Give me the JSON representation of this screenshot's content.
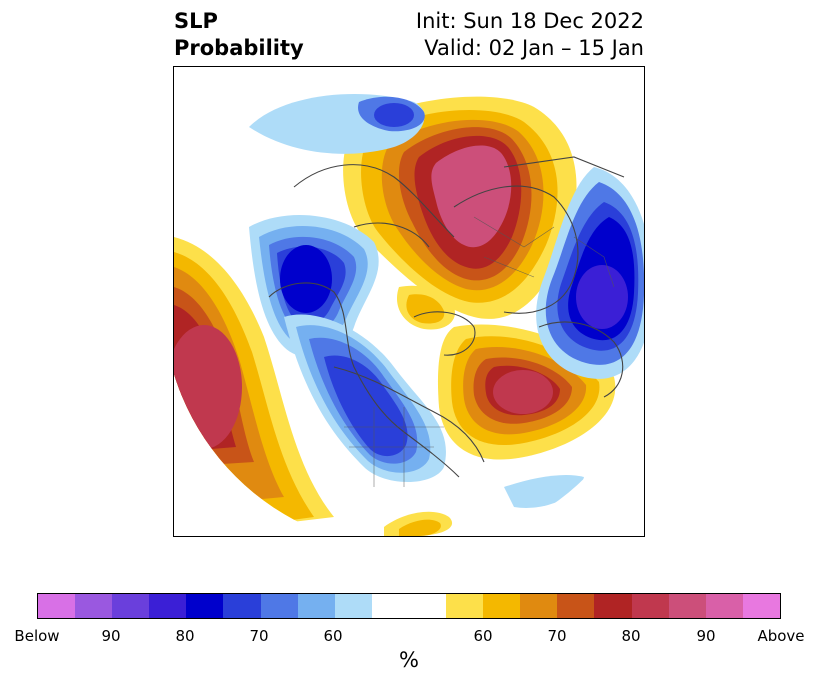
{
  "title": {
    "left_line1": "SLP",
    "left_line2": "Probability",
    "right_line1": "Init: Sun 18 Dec 2022",
    "right_line2": "Valid: 02 Jan – 15 Jan"
  },
  "colorbar": {
    "unit_label": "%",
    "colors": [
      "#d870e6",
      "#9a58e0",
      "#6a3fdc",
      "#3b1fd6",
      "#0000cc",
      "#2a3fd9",
      "#4f78e6",
      "#75b0f0",
      "#aedcf8",
      "#ffffff",
      "#ffffff",
      "#fde04a",
      "#f4b800",
      "#e08a10",
      "#c85418",
      "#b02424",
      "#c0384e",
      "#cc4f7a",
      "#d960a8",
      "#e878e0"
    ],
    "tick_labels": [
      "Below",
      "90",
      "80",
      "70",
      "60",
      "60",
      "70",
      "80",
      "90",
      "Above"
    ]
  },
  "map": {
    "projection": "north-polar-stereographic",
    "variable": "SLP probability",
    "features": [
      {
        "name": "north-pacific-below-normal",
        "category": "below",
        "level": "80-90%"
      },
      {
        "name": "north-america-below-normal",
        "category": "below",
        "level": "80%"
      },
      {
        "name": "north-atlantic-west-europe-below-normal",
        "category": "below",
        "level": "80-90%"
      },
      {
        "name": "arctic-siberia-above-normal",
        "category": "above",
        "level": "90%+"
      },
      {
        "name": "north-atlantic-above-normal",
        "category": "above",
        "level": "80-90%"
      },
      {
        "name": "eastern-pacific-above-normal",
        "category": "above",
        "level": "80-90%"
      },
      {
        "name": "hudson-bay-above-normal",
        "category": "above",
        "level": "60-70%"
      }
    ]
  }
}
